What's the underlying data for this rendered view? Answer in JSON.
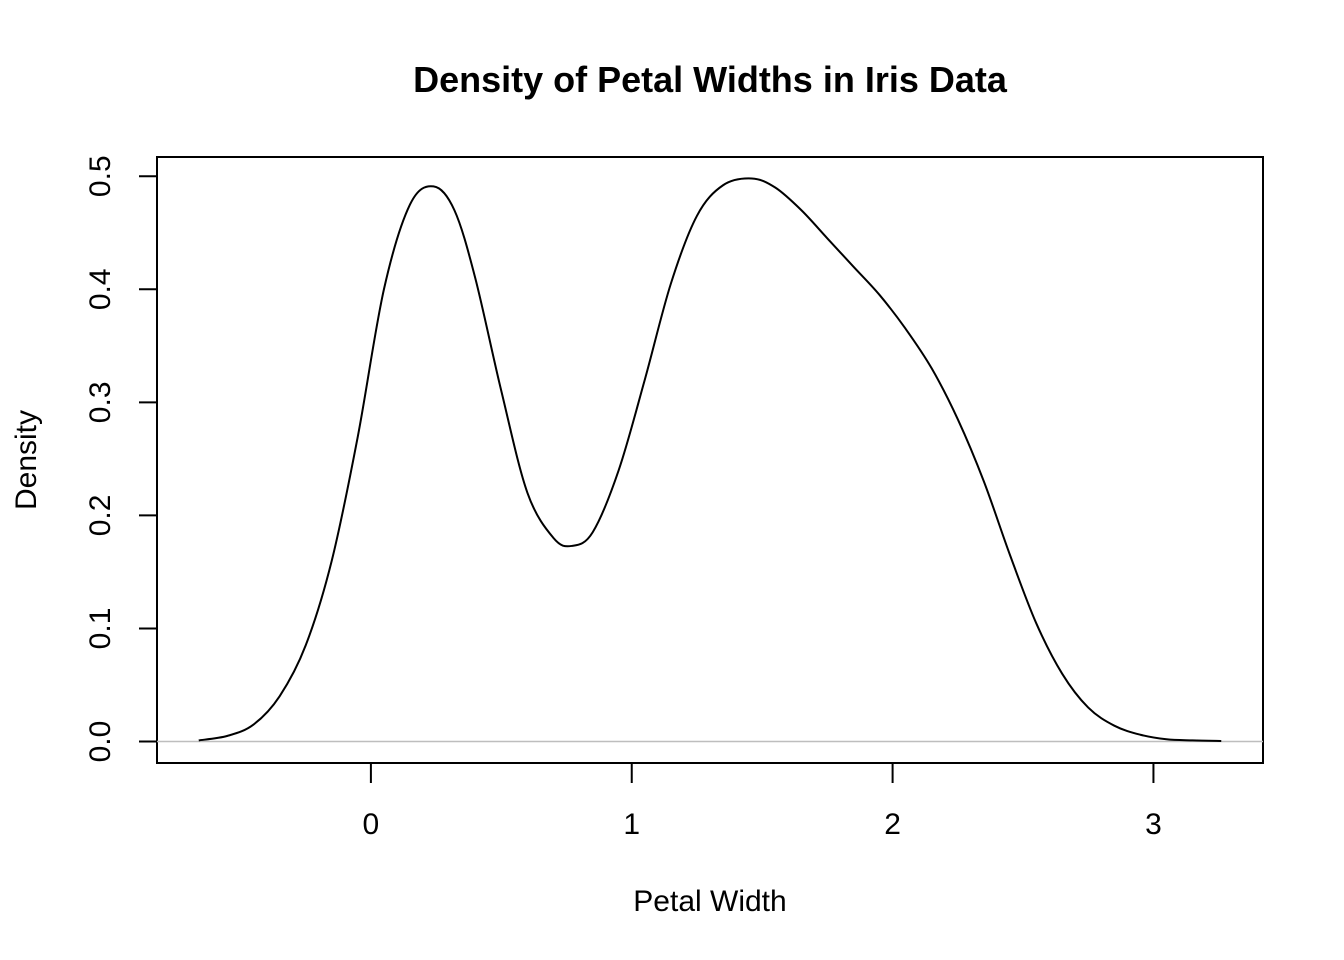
{
  "chart_data": {
    "type": "line",
    "title": "Density of Petal Widths in Iris Data",
    "xlabel": "Petal Width",
    "ylabel": "Density",
    "xlim": [
      -0.82,
      3.42
    ],
    "ylim": [
      -0.019,
      0.517
    ],
    "x_ticks": [
      0,
      1,
      2,
      3
    ],
    "x_tick_labels": [
      "0",
      "1",
      "2",
      "3"
    ],
    "y_ticks": [
      0.0,
      0.1,
      0.2,
      0.3,
      0.4,
      0.5
    ],
    "y_tick_labels": [
      "0.0",
      "0.1",
      "0.2",
      "0.3",
      "0.4",
      "0.5"
    ],
    "grid": false,
    "zero_line_color": "#bebebe",
    "line_color": "#000000",
    "series": [
      {
        "x": [
          -0.66,
          -0.55,
          -0.45,
          -0.35,
          -0.25,
          -0.15,
          -0.05,
          0.05,
          0.15,
          0.24,
          0.32,
          0.4,
          0.5,
          0.6,
          0.7,
          0.77,
          0.85,
          0.95,
          1.05,
          1.15,
          1.25,
          1.35,
          1.46,
          1.55,
          1.65,
          1.75,
          1.85,
          1.95,
          2.05,
          2.15,
          2.25,
          2.35,
          2.45,
          2.55,
          2.65,
          2.75,
          2.85,
          2.95,
          3.05,
          3.15,
          3.26
        ],
        "y": [
          0.001,
          0.005,
          0.015,
          0.04,
          0.085,
          0.16,
          0.27,
          0.4,
          0.475,
          0.491,
          0.47,
          0.41,
          0.31,
          0.22,
          0.18,
          0.173,
          0.185,
          0.24,
          0.32,
          0.405,
          0.465,
          0.492,
          0.498,
          0.49,
          0.47,
          0.445,
          0.42,
          0.395,
          0.365,
          0.33,
          0.285,
          0.23,
          0.165,
          0.105,
          0.06,
          0.03,
          0.014,
          0.006,
          0.002,
          0.001,
          0.0005
        ]
      }
    ]
  }
}
